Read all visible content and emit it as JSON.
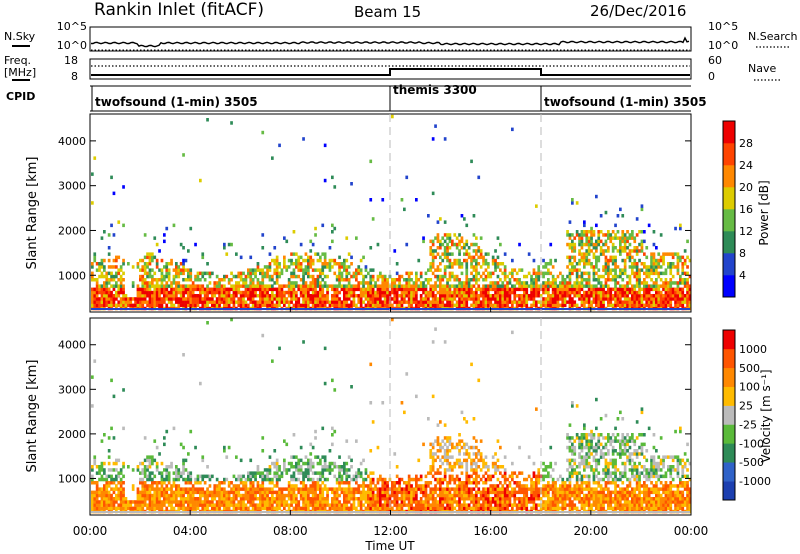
{
  "header": {
    "title": "Rankin Inlet (fitACF)",
    "beam": "Beam 15",
    "date": "26/Dec/2016"
  },
  "sky_panel": {
    "left_label": "N.Sky",
    "right_label": "N.Search",
    "left_ticks": [
      "10^5",
      "10^0"
    ],
    "right_ticks": [
      "10^5",
      "10^0"
    ]
  },
  "freq_panel": {
    "left_label_1": "Freq.",
    "left_label_2": "[MHz]",
    "right_label": "Nave",
    "left_ticks": [
      "18",
      "8"
    ],
    "right_ticks": [
      "60",
      "0"
    ]
  },
  "cpid_panel": {
    "label": "CPID",
    "modes": [
      {
        "name": "twofsound (1-min) 3505",
        "start_hour": 0
      },
      {
        "name": "themis 3300",
        "start_hour": 12
      },
      {
        "name": "twofsound (1-min) 3505",
        "start_hour": 18
      }
    ]
  },
  "chart_data": [
    {
      "type": "heatmap",
      "name": "power",
      "ylabel": "Slant Range [km]",
      "ylim": [
        180,
        4600
      ],
      "yticks": [
        "1000",
        "2000",
        "3000",
        "4000"
      ],
      "colorbar": {
        "label": "Power [dB]",
        "ticks": [
          "4",
          "8",
          "12",
          "16",
          "20",
          "24",
          "28"
        ],
        "colors": [
          "#0000ff",
          "#2244cc",
          "#2e8b57",
          "#66bb44",
          "#ddcc00",
          "#ff8800",
          "#ff4400",
          "#ee0000"
        ]
      }
    },
    {
      "type": "heatmap",
      "name": "velocity",
      "ylabel": "Slant Range [km]",
      "ylim": [
        180,
        4600
      ],
      "yticks": [
        "1000",
        "2000",
        "3000",
        "4000"
      ],
      "xlabel": "Time UT",
      "xticks": [
        "00:00",
        "04:00",
        "08:00",
        "12:00",
        "16:00",
        "20:00",
        "00:00"
      ],
      "colorbar": {
        "label": "Velocity [m s⁻¹]",
        "ticks": [
          "1000",
          "500",
          "100",
          "25",
          "-25",
          "-100",
          "-500",
          "-1000"
        ],
        "colors": [
          "#1c3fb0",
          "#2f62c8",
          "#2e8b57",
          "#5aba3a",
          "#bbbbbb",
          "#ffbb00",
          "#ff8800",
          "#ff5500",
          "#ee0000"
        ]
      }
    }
  ]
}
